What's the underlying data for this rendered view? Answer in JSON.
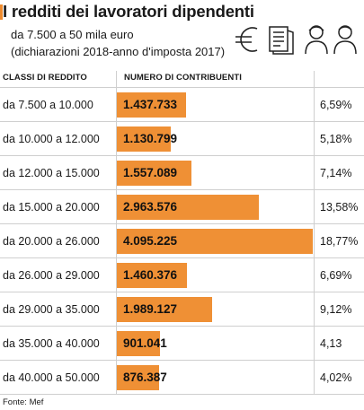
{
  "header": {
    "title": "I redditi dei lavoratori dipendenti",
    "subtitle_line1": "da 7.500 a 50 mila euro",
    "subtitle_line2": "(dichiarazioni 2018-anno d'imposta 2017)",
    "icons": [
      "euro-icon",
      "document-icon",
      "woman-icon",
      "man-icon"
    ]
  },
  "table": {
    "col1_header": "CLASSI DI REDDITO",
    "col2_header": "NUMERO DI CONTRIBUENTI"
  },
  "source": "Fonte: Mef",
  "colors": {
    "bar": "#ef9035",
    "accent": "#ee8b2e",
    "grid": "#cfcfcf"
  },
  "chart_data": {
    "type": "bar",
    "orientation": "horizontal",
    "title": "I redditi dei lavoratori dipendenti",
    "subtitle": "da 7.500 a 50 mila euro (dichiarazioni 2018-anno d'imposta 2017)",
    "xlabel": "NUMERO DI CONTRIBUENTI",
    "ylabel": "CLASSI DI REDDITO",
    "categories": [
      "da 7.500 a 10.000",
      "da 10.000 a 12.000",
      "da 12.000 a 15.000",
      "da 15.000 a 20.000",
      "da 20.000 a 26.000",
      "da 26.000 a 29.000",
      "da 29.000 a 35.000",
      "da 35.000 a 40.000",
      "da 40.000 a 50.000"
    ],
    "values": [
      1437733,
      1130799,
      1557089,
      2963576,
      4095225,
      1460376,
      1989127,
      901041,
      876387
    ],
    "value_labels": [
      "1.437.733",
      "1.130.799",
      "1.557.089",
      "2.963.576",
      "4.095.225",
      "1.460.376",
      "1.989.127",
      "901.041",
      "876.387"
    ],
    "percentages": [
      "6,59%",
      "5,18%",
      "7,14%",
      "13,58%",
      "18,77%",
      "6,69%",
      "9,12%",
      "4,13",
      "4,02%"
    ],
    "grid": true,
    "legend": "none"
  }
}
